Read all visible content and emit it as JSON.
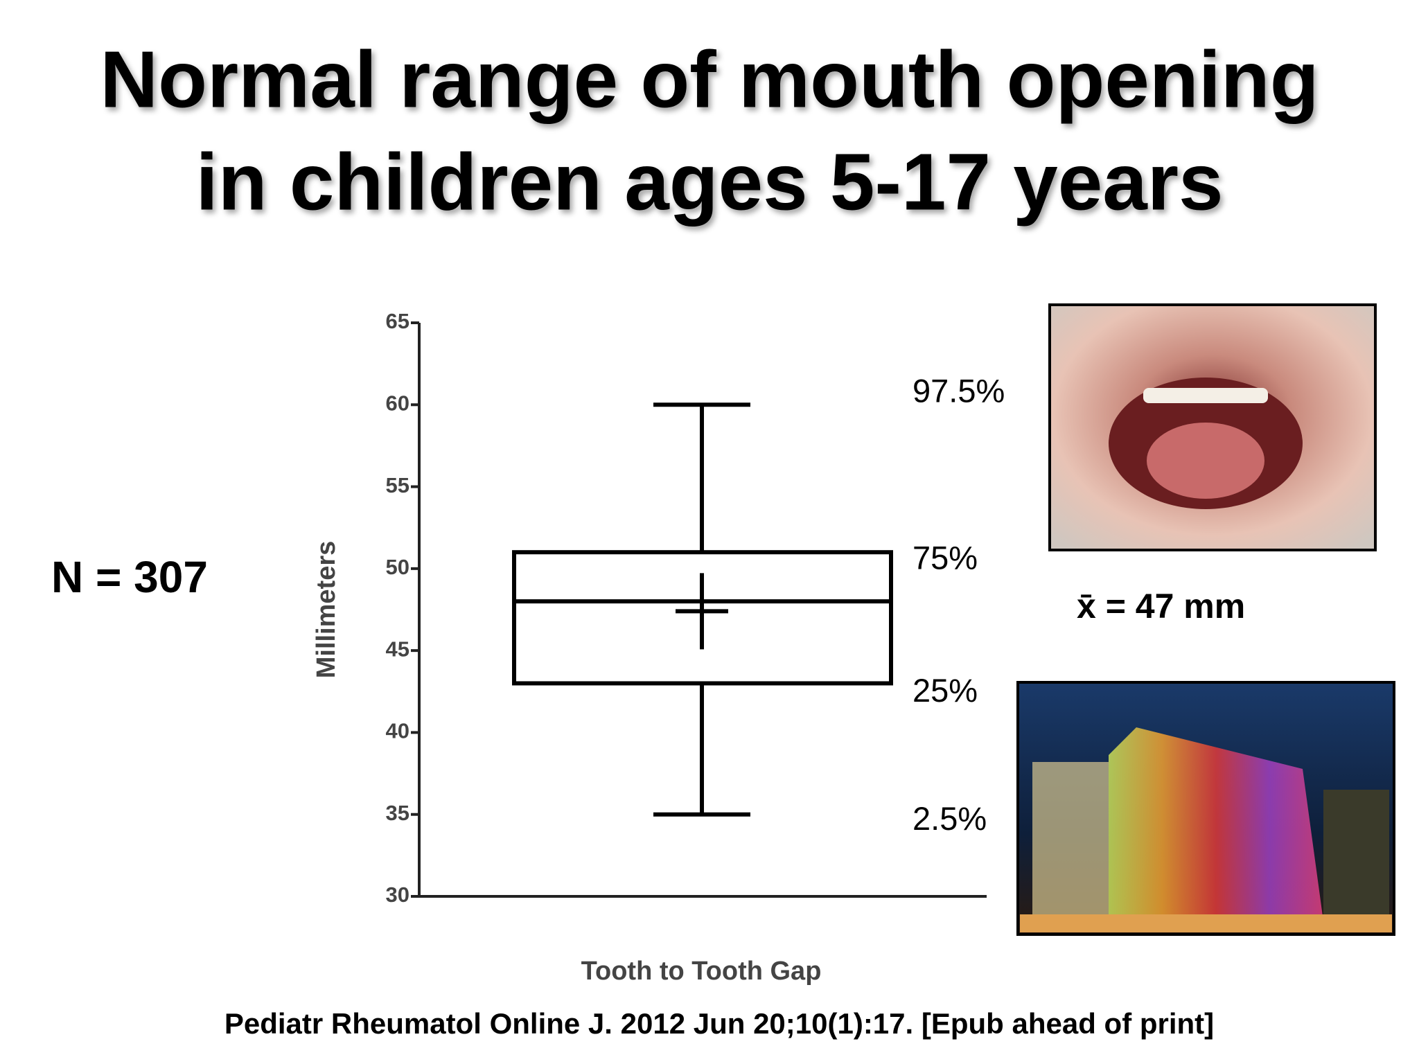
{
  "chart_data": {
    "type": "box",
    "title": [
      "Normal range of mouth opening",
      "in children ages 5-17 years"
    ],
    "ylabel": "Millimeters",
    "xlabel": "Tooth to Tooth Gap",
    "ylim": [
      30,
      65
    ],
    "yticks": [
      30,
      35,
      40,
      45,
      50,
      55,
      60,
      65
    ],
    "box": {
      "whislo": 35,
      "q1": 43,
      "median": 48,
      "q3": 51,
      "whishi": 60,
      "mean": 47.4
    },
    "box_labels": {
      "whishi": "97.5%",
      "q3": "75%",
      "q1": "25%",
      "whislo": "2.5%"
    },
    "annotations": {
      "n": "N = 307",
      "mean": "x̄ = 47 mm",
      "citation": "Pediatr Rheumatol Online J. 2012 Jun 20;10(1):17. [Epub ahead of print]"
    },
    "color": "#000000"
  }
}
